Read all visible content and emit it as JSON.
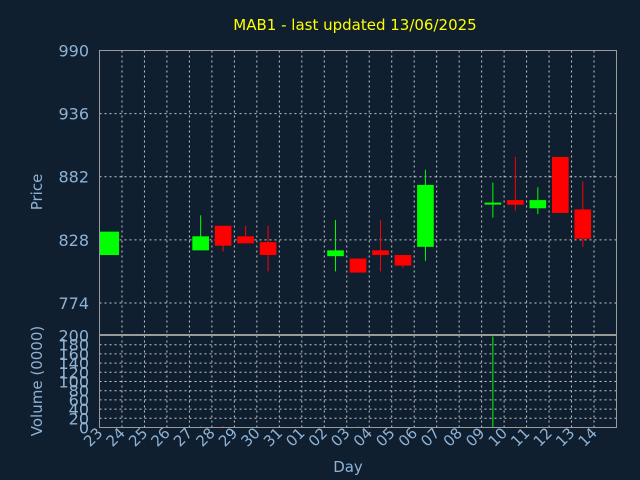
{
  "chart_data": {
    "type": "candlestick",
    "title": "MAB1 - last updated 13/06/2025",
    "xlabel": "Day",
    "ylabel": "Price",
    "volume_label": "Volume (0000)",
    "grid": true,
    "colors": {
      "up": "#00ff00",
      "down": "#ff0000",
      "background": "#0f1f2f",
      "title": "#ffff00",
      "tick": "#8fb2d4"
    },
    "price_ylim": [
      747,
      990
    ],
    "price_ticks": [
      "990",
      "936",
      "882",
      "828",
      "774"
    ],
    "volume_ylim": [
      0,
      200
    ],
    "volume_ticks": [
      "200",
      "180",
      "160",
      "140",
      "120",
      "100",
      "80",
      "60",
      "40",
      "20",
      "0"
    ],
    "x_labels": [
      "23",
      "24",
      "25",
      "26",
      "27",
      "28",
      "29",
      "30",
      "31",
      "01",
      "02",
      "03",
      "04",
      "05",
      "06",
      "07",
      "08",
      "09",
      "10",
      "11",
      "12",
      "13",
      "14"
    ],
    "candles": [
      {
        "day": "23",
        "open": 815,
        "high": 835,
        "low": 815,
        "close": 835
      },
      {
        "day": "27",
        "open": 819,
        "high": 849,
        "low": 819,
        "close": 831
      },
      {
        "day": "28",
        "open": 840,
        "high": 840,
        "low": 818,
        "close": 823
      },
      {
        "day": "29",
        "open": 831,
        "high": 840,
        "low": 825,
        "close": 825
      },
      {
        "day": "30",
        "open": 826,
        "high": 840,
        "low": 801,
        "close": 815
      },
      {
        "day": "02",
        "open": 814,
        "high": 845,
        "low": 801,
        "close": 819
      },
      {
        "day": "03",
        "open": 812,
        "high": 812,
        "low": 800,
        "close": 800
      },
      {
        "day": "04",
        "open": 819,
        "high": 845,
        "low": 801,
        "close": 815
      },
      {
        "day": "05",
        "open": 815,
        "high": 815,
        "low": 804,
        "close": 806
      },
      {
        "day": "06",
        "open": 822,
        "high": 888,
        "low": 810,
        "close": 875
      },
      {
        "day": "09",
        "open": 858,
        "high": 877,
        "low": 847,
        "close": 859
      },
      {
        "day": "10",
        "open": 862,
        "high": 899,
        "low": 853,
        "close": 858
      },
      {
        "day": "11",
        "open": 855,
        "high": 873,
        "low": 850,
        "close": 862
      },
      {
        "day": "12",
        "open": 899,
        "high": 899,
        "low": 851,
        "close": 851
      },
      {
        "day": "13",
        "open": 854,
        "high": 878,
        "low": 822,
        "close": 829
      }
    ],
    "volume": [
      {
        "day": "27",
        "value": 2
      },
      {
        "day": "28",
        "value": 3,
        "color": "#ff0000"
      },
      {
        "day": "03",
        "value": 2
      },
      {
        "day": "04",
        "value": 2,
        "color": "#ff0000"
      },
      {
        "day": "06",
        "value": 2
      },
      {
        "day": "09",
        "value": 198
      },
      {
        "day": "10",
        "value": 2,
        "color": "#ff0000"
      },
      {
        "day": "12",
        "value": 2,
        "color": "#ff0000"
      },
      {
        "day": "13",
        "value": 2,
        "color": "#ff0000"
      }
    ]
  }
}
